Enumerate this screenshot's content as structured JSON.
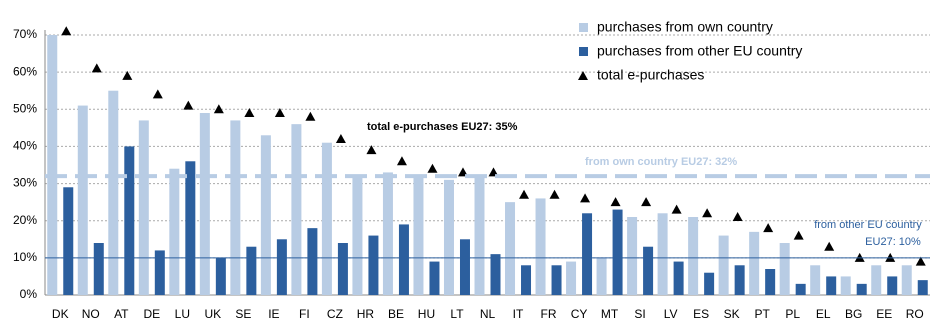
{
  "chart_data": {
    "type": "bar",
    "ylim": [
      0,
      70
    ],
    "yticks": [
      {
        "value": 0,
        "label": "0%"
      },
      {
        "value": 10,
        "label": "10%"
      },
      {
        "value": 20,
        "label": "20%"
      },
      {
        "value": 30,
        "label": "30%"
      },
      {
        "value": 40,
        "label": "40%"
      },
      {
        "value": 50,
        "label": "50%"
      },
      {
        "value": 60,
        "label": "60%"
      },
      {
        "value": 70,
        "label": "70%"
      }
    ],
    "grid": true,
    "categories": [
      "DK",
      "NO",
      "AT",
      "DE",
      "LU",
      "UK",
      "SE",
      "IE",
      "FI",
      "CZ",
      "HR",
      "BE",
      "HU",
      "LT",
      "NL",
      "IT",
      "FR",
      "CY",
      "MT",
      "SI",
      "LV",
      "ES",
      "SK",
      "PT",
      "PL",
      "EL",
      "BG",
      "EE",
      "RO"
    ],
    "series": [
      {
        "name": "purchases from own country",
        "color": "#b8cce4",
        "type": "bar",
        "values": [
          70,
          51,
          55,
          47,
          34,
          49,
          47,
          43,
          46,
          41,
          32,
          33,
          32,
          31,
          32,
          25,
          26,
          9,
          10,
          21,
          22,
          21,
          16,
          17,
          14,
          8,
          5,
          8,
          8
        ]
      },
      {
        "name": "purchases from other EU country",
        "color": "#2c5f9e",
        "type": "bar",
        "values": [
          29,
          14,
          40,
          12,
          36,
          10,
          13,
          15,
          18,
          14,
          16,
          19,
          9,
          15,
          11,
          8,
          8,
          22,
          23,
          13,
          9,
          6,
          8,
          7,
          3,
          5,
          3,
          5,
          4
        ]
      },
      {
        "name": "total e-purchases",
        "color": "#000000",
        "type": "marker",
        "values": [
          71,
          61,
          59,
          54,
          51,
          50,
          49,
          49,
          48,
          42,
          39,
          36,
          34,
          33,
          33,
          27,
          27,
          26,
          25,
          25,
          23,
          22,
          21,
          18,
          16,
          13,
          10,
          10,
          9
        ]
      }
    ],
    "reference_lines": [
      {
        "value": 32,
        "label": "from own country EU27: 32%",
        "color": "#b8cce4",
        "style": "dashed"
      },
      {
        "value": 10,
        "label": [
          "from other EU country",
          "EU27: 10%"
        ],
        "color": "#2c5f9e",
        "style": "solid"
      }
    ],
    "annotations": [
      "total e-purchases EU27: 35%"
    ]
  }
}
